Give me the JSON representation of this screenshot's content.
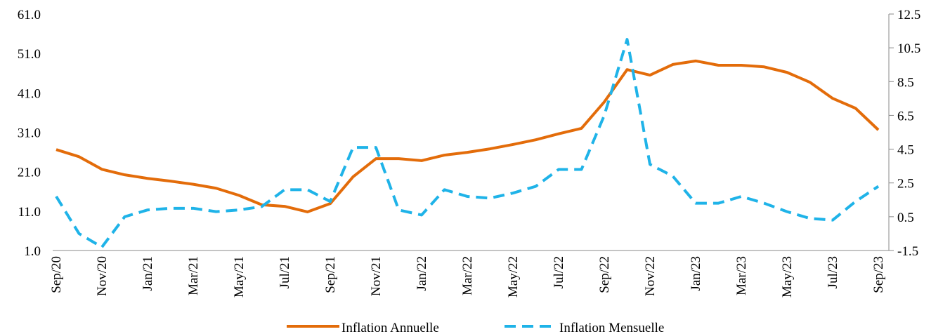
{
  "chart_data": {
    "type": "line",
    "categories": [
      "Sep/20",
      null,
      "Nov/20",
      null,
      "Jan/21",
      null,
      "Mar/21",
      null,
      "May/21",
      null,
      "Jul/21",
      null,
      "Sep/21",
      null,
      "Nov/21",
      null,
      "Jan/22",
      null,
      "Mar/22",
      null,
      "May/22",
      null,
      "Jul/22",
      null,
      "Sep/22",
      null,
      "Nov/22",
      null,
      "Jan/23",
      null,
      "Mar/23",
      null,
      "May/23",
      null,
      "Jul/23",
      null,
      "Sep/23"
    ],
    "series": [
      {
        "name": "Inflation Annuelle",
        "color": "#e36c0a",
        "values": [
          26.6,
          24.8,
          21.6,
          20.2,
          19.3,
          18.6,
          17.8,
          16.8,
          15.0,
          12.6,
          12.2,
          10.8,
          12.9,
          19.7,
          24.3,
          24.3,
          23.8,
          25.2,
          25.9,
          26.8,
          27.9,
          29.1,
          30.6,
          32.0,
          38.7,
          46.9,
          45.5,
          48.2,
          49.1,
          48.0,
          48.0,
          47.6,
          46.2,
          43.7,
          39.6,
          37.1,
          31.6
        ]
      },
      {
        "name": "Inflation Mensuelle",
        "color": "#1fb3e8",
        "axis": "y2",
        "dashed": true,
        "values": [
          1.7,
          -0.5,
          -1.3,
          0.5,
          0.9,
          1.0,
          1.0,
          0.8,
          0.9,
          1.1,
          2.1,
          2.1,
          1.4,
          4.6,
          4.6,
          0.9,
          0.6,
          2.1,
          1.7,
          1.6,
          1.9,
          2.3,
          3.3,
          3.3,
          6.5,
          11.0,
          3.6,
          2.9,
          1.3,
          1.3,
          1.7,
          1.3,
          0.8,
          0.4,
          0.3,
          1.4,
          2.3
        ]
      }
    ],
    "ylim": [
      1,
      61
    ],
    "yticks": [
      {
        "value": 1,
        "label": "1.0"
      },
      {
        "value": 11,
        "label": "11.0"
      },
      {
        "value": 21,
        "label": "21.0"
      },
      {
        "value": 31,
        "label": "31.0"
      },
      {
        "value": 41,
        "label": "41.0"
      },
      {
        "value": 51,
        "label": "51.0"
      },
      {
        "value": 61,
        "label": "61.0"
      }
    ],
    "y2lim": [
      -1.5,
      12.5
    ],
    "y2ticks": [
      -1.5,
      0.5,
      2.5,
      4.5,
      6.5,
      8.5,
      10.5,
      12.5
    ],
    "legend": "bottom"
  }
}
